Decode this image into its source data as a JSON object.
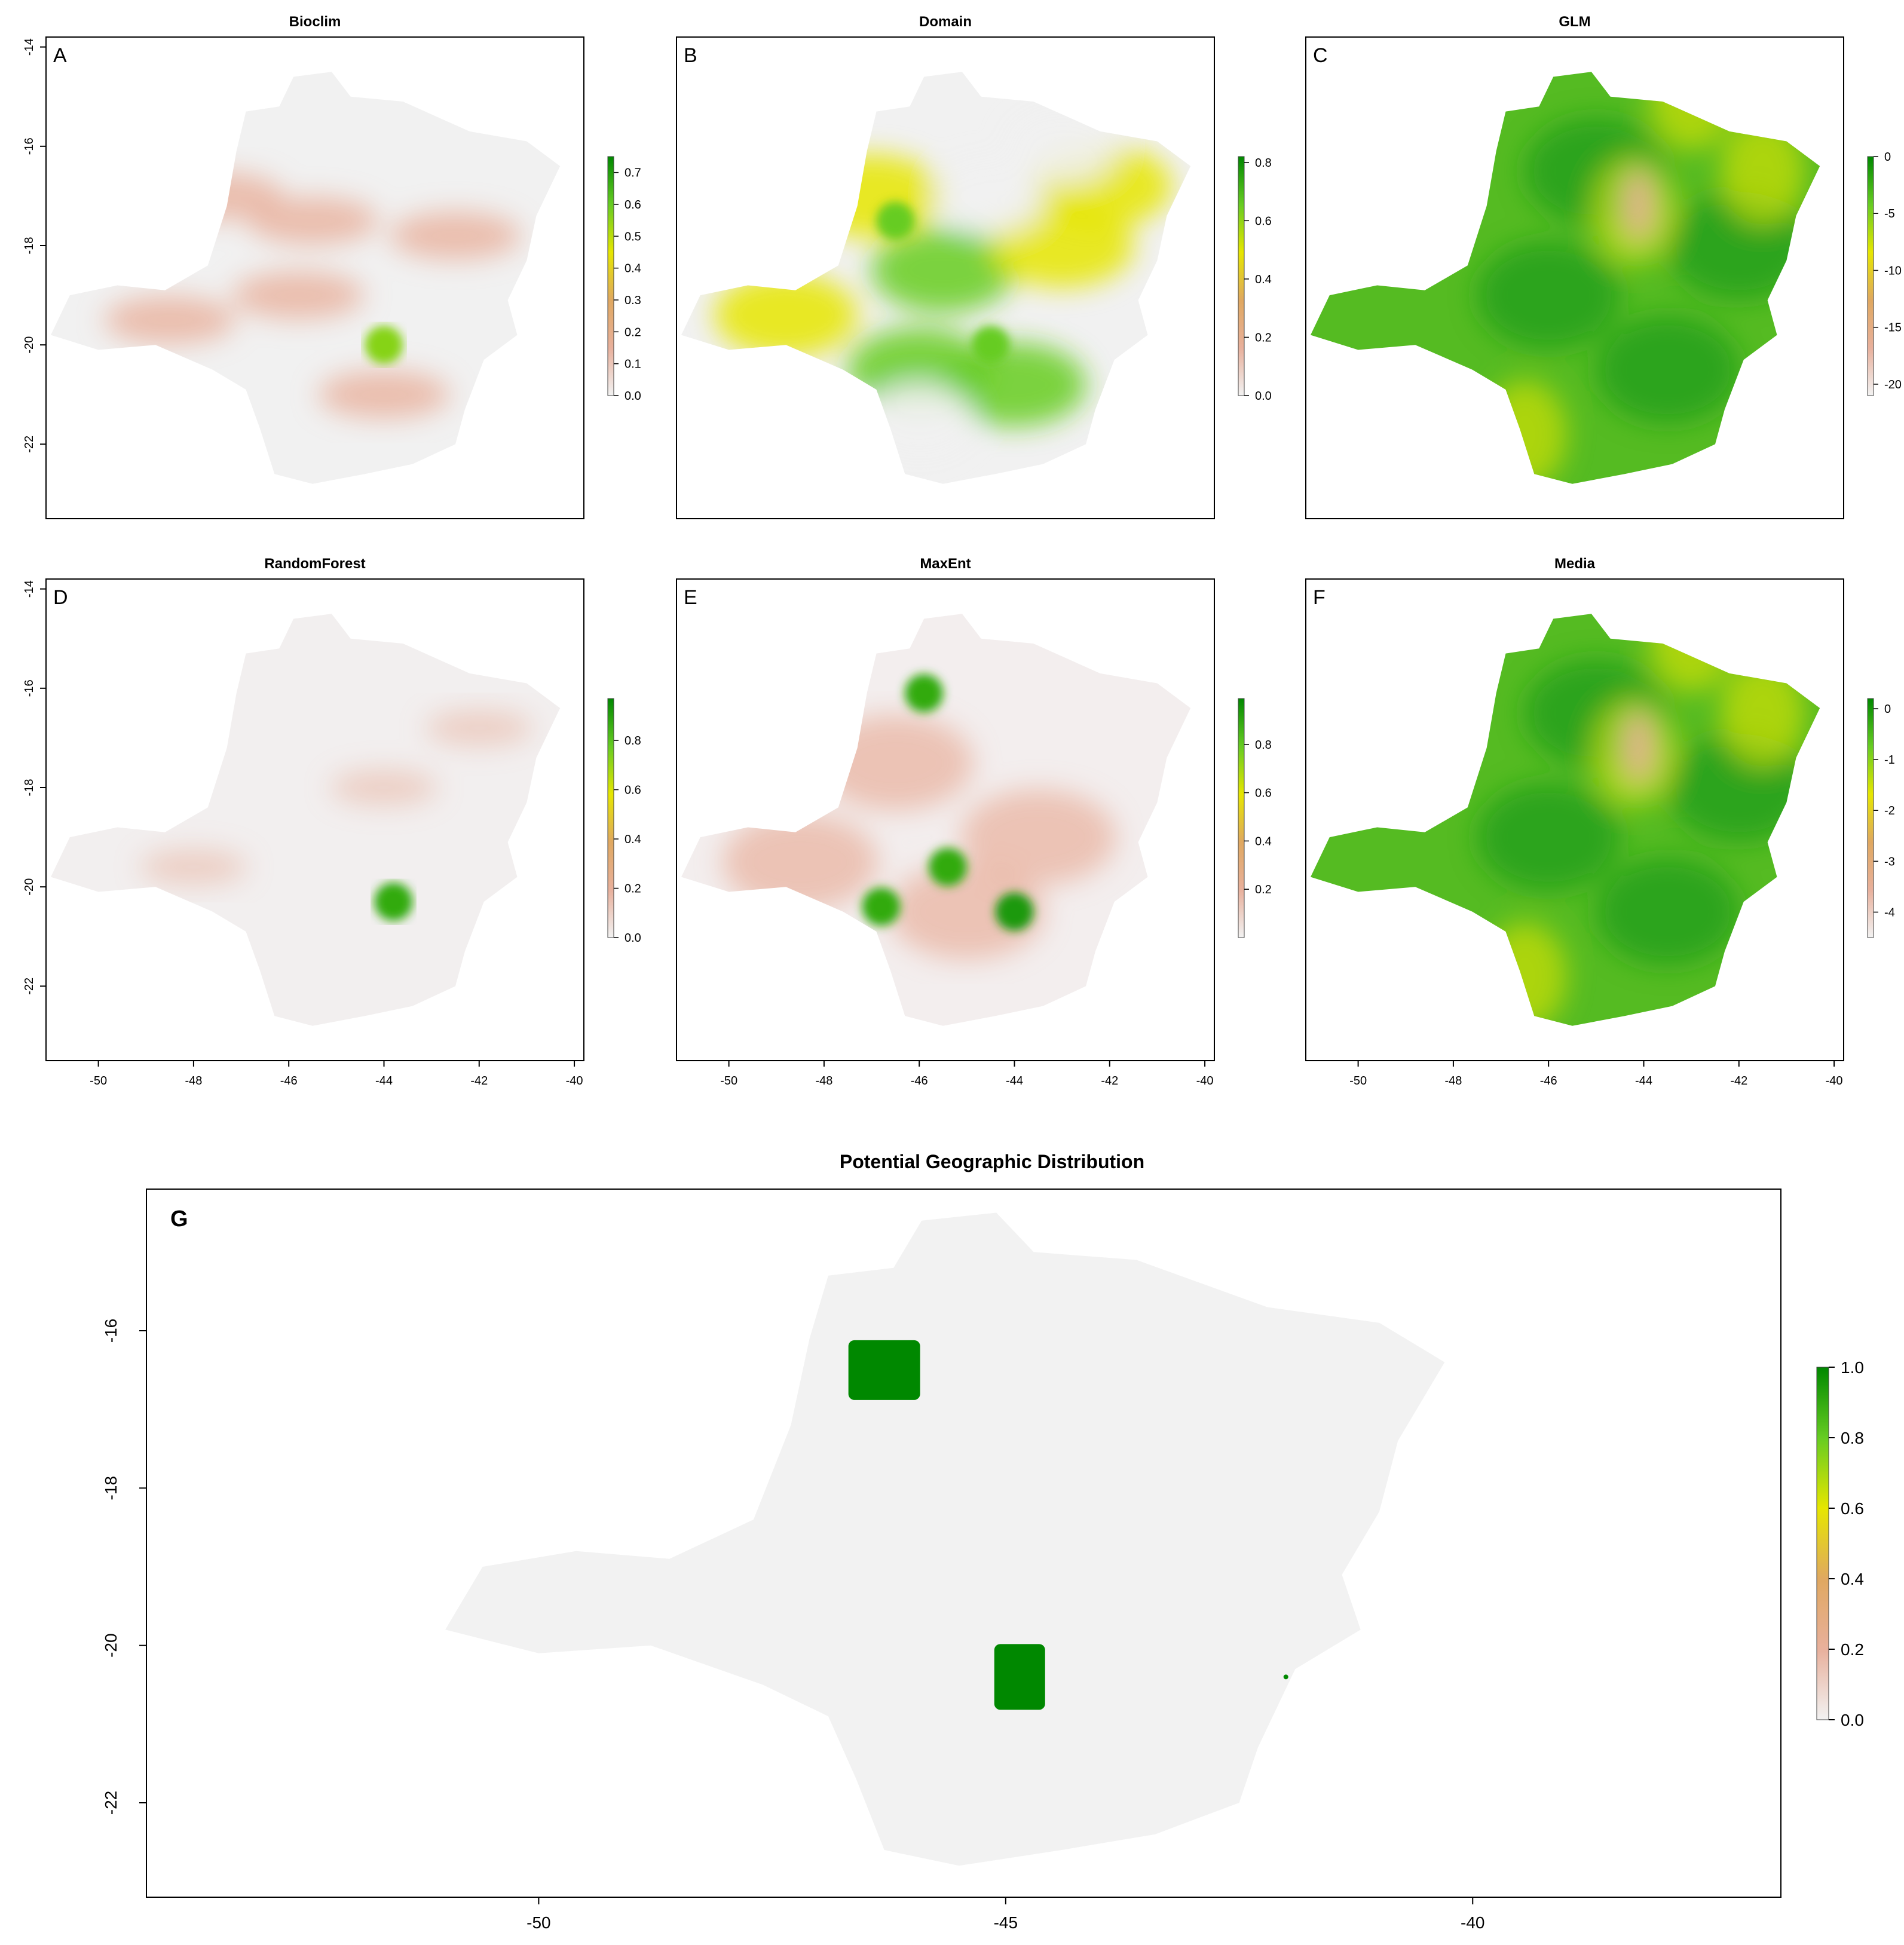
{
  "figure": {
    "panels": [
      {
        "id": "A",
        "letter": "A",
        "title": "Bioclim",
        "x_ticks": [],
        "y_ticks": [
          "-14",
          "-16",
          "-18",
          "-20",
          "-22"
        ],
        "legend_ticks": [
          "0.7",
          "0.6",
          "0.5",
          "0.4",
          "0.3",
          "0.2",
          "0.1",
          "0.0"
        ],
        "legend_range": [
          0,
          0.75
        ],
        "hotspots": [
          {
            "lon": -44.0,
            "lat": -20.0,
            "v": 0.75
          }
        ]
      },
      {
        "id": "B",
        "letter": "B",
        "title": "Domain",
        "x_ticks": [],
        "y_ticks": [],
        "legend_ticks": [
          "0.8",
          "0.6",
          "0.4",
          "0.2",
          "0.0"
        ],
        "legend_range": [
          0,
          0.82
        ],
        "hotspots": [
          {
            "lon": -46.5,
            "lat": -17.5,
            "v": 0.8
          },
          {
            "lon": -44.5,
            "lat": -20.0,
            "v": 0.8
          }
        ]
      },
      {
        "id": "C",
        "letter": "C",
        "title": "GLM",
        "x_ticks": [],
        "y_ticks": [],
        "legend_ticks": [
          "0",
          "-5",
          "-10",
          "-15",
          "-20"
        ],
        "legend_range": [
          -21,
          0
        ],
        "hotspots": []
      },
      {
        "id": "D",
        "letter": "D",
        "title": "RandomForest",
        "x_ticks": [
          "-50",
          "-48",
          "-46",
          "-44",
          "-42",
          "-40"
        ],
        "y_ticks": [
          "-14",
          "-16",
          "-18",
          "-20",
          "-22"
        ],
        "legend_ticks": [
          "0.8",
          "0.6",
          "0.4",
          "0.2",
          "0.0"
        ],
        "legend_range": [
          0,
          0.97
        ],
        "hotspots": [
          {
            "lon": -43.8,
            "lat": -20.3,
            "v": 0.9
          }
        ]
      },
      {
        "id": "E",
        "letter": "E",
        "title": "MaxEnt",
        "x_ticks": [
          "-50",
          "-48",
          "-46",
          "-44",
          "-42",
          "-40"
        ],
        "y_ticks": [],
        "legend_ticks": [
          "0.8",
          "0.6",
          "0.4",
          "0.2"
        ],
        "legend_range": [
          0,
          0.99
        ],
        "hotspots": [
          {
            "lon": -45.9,
            "lat": -16.1,
            "v": 0.9
          },
          {
            "lon": -45.4,
            "lat": -19.6,
            "v": 0.9
          },
          {
            "lon": -44.0,
            "lat": -20.5,
            "v": 0.95
          },
          {
            "lon": -46.8,
            "lat": -20.4,
            "v": 0.9
          }
        ]
      },
      {
        "id": "F",
        "letter": "F",
        "title": "Media",
        "x_ticks": [
          "-50",
          "-48",
          "-46",
          "-44",
          "-42",
          "-40"
        ],
        "y_ticks": [],
        "legend_ticks": [
          "0",
          "-1",
          "-2",
          "-3",
          "-4"
        ],
        "legend_range": [
          -4.5,
          0.2
        ],
        "hotspots": []
      }
    ],
    "main": {
      "letter": "G",
      "title": "Potential Geographic Distribution",
      "x_ticks": [
        "-50",
        "-45",
        "-40"
      ],
      "y_ticks": [
        "-16",
        "-18",
        "-20",
        "-22"
      ],
      "legend_ticks": [
        "1.0",
        "0.8",
        "0.6",
        "0.4",
        "0.2",
        "0.0"
      ],
      "legend_range": [
        0,
        1
      ],
      "suitable_areas": [
        {
          "lon": -46.3,
          "lat": -16.5,
          "v": 1.0
        },
        {
          "lon": -44.85,
          "lat": -20.4,
          "v": 1.0
        },
        {
          "lon": -42.0,
          "lat": -20.4,
          "v": 1.0
        }
      ]
    },
    "colors": {
      "background_region": "#f2f2f2",
      "scale_low": "#f2f2f2",
      "scale_pink": "#e8b09c",
      "scale_tan": "#e0a860",
      "scale_yellow": "#e6e600",
      "scale_light_green": "#66cc22",
      "scale_green": "#1a9a1a",
      "scale_high": "#008800"
    }
  }
}
